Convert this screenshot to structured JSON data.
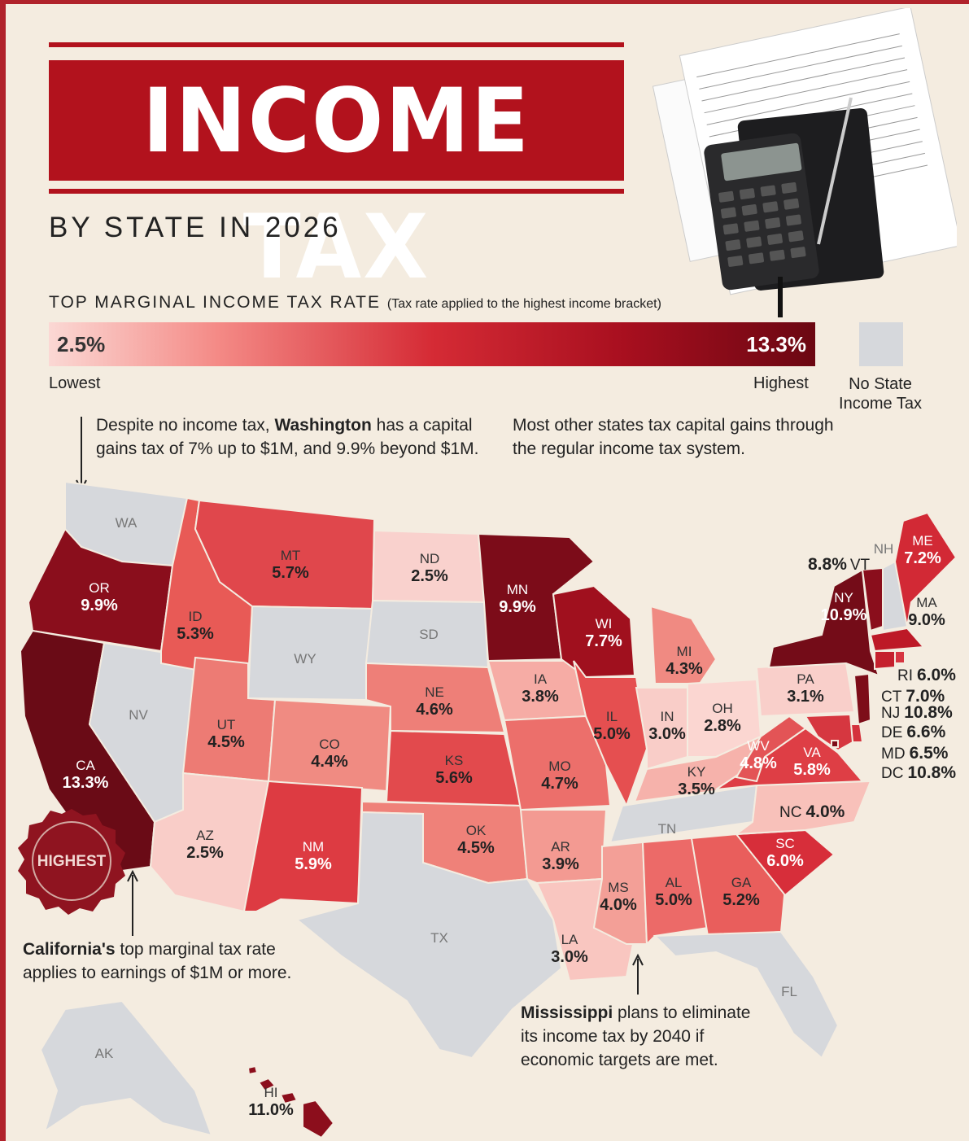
{
  "title": "INCOME TAX",
  "subtitle": "BY STATE IN 2026",
  "legend": {
    "title": "TOP MARGINAL INCOME TAX RATE",
    "title_note": "(Tax rate applied to the highest income bracket)",
    "min_value": "2.5%",
    "max_value": "13.3%",
    "min_label": "Lowest",
    "max_label": "Highest",
    "no_tax_label": "No State Income Tax",
    "colors": {
      "low": "#fbd8d4",
      "high": "#6b0712",
      "none": "#d6d8dc"
    }
  },
  "notes": {
    "washington_pre": "Despite no income tax, ",
    "washington_bold": "Washington",
    "washington_post": " has a capital gains tax of 7% up to $1M, and 9.9% beyond $1M.",
    "other_states": "Most other states tax capital gains through the regular income tax system.",
    "california_bold": "California's",
    "california_post": " top marginal tax rate applies to earnings of $1M or more.",
    "mississippi_bold": "Mississippi",
    "mississippi_post": " plans to eliminate its income tax by 2040 if economic targets are met."
  },
  "seal_text": "HIGHEST",
  "states": [
    {
      "abbr": "WA",
      "rate": ""
    },
    {
      "abbr": "OR",
      "rate": "9.9%"
    },
    {
      "abbr": "CA",
      "rate": "13.3%"
    },
    {
      "abbr": "NV",
      "rate": ""
    },
    {
      "abbr": "ID",
      "rate": "5.3%"
    },
    {
      "abbr": "MT",
      "rate": "5.7%"
    },
    {
      "abbr": "WY",
      "rate": ""
    },
    {
      "abbr": "UT",
      "rate": "4.5%"
    },
    {
      "abbr": "AZ",
      "rate": "2.5%"
    },
    {
      "abbr": "CO",
      "rate": "4.4%"
    },
    {
      "abbr": "NM",
      "rate": "5.9%"
    },
    {
      "abbr": "ND",
      "rate": "2.5%"
    },
    {
      "abbr": "SD",
      "rate": ""
    },
    {
      "abbr": "NE",
      "rate": "4.6%"
    },
    {
      "abbr": "KS",
      "rate": "5.6%"
    },
    {
      "abbr": "OK",
      "rate": "4.5%"
    },
    {
      "abbr": "TX",
      "rate": ""
    },
    {
      "abbr": "MN",
      "rate": "9.9%"
    },
    {
      "abbr": "IA",
      "rate": "3.8%"
    },
    {
      "abbr": "MO",
      "rate": "4.7%"
    },
    {
      "abbr": "AR",
      "rate": "3.9%"
    },
    {
      "abbr": "LA",
      "rate": "3.0%"
    },
    {
      "abbr": "WI",
      "rate": "7.7%"
    },
    {
      "abbr": "IL",
      "rate": "5.0%"
    },
    {
      "abbr": "MI",
      "rate": "4.3%"
    },
    {
      "abbr": "IN",
      "rate": "3.0%"
    },
    {
      "abbr": "OH",
      "rate": "2.8%"
    },
    {
      "abbr": "KY",
      "rate": "3.5%"
    },
    {
      "abbr": "TN",
      "rate": ""
    },
    {
      "abbr": "MS",
      "rate": "4.0%"
    },
    {
      "abbr": "AL",
      "rate": "5.0%"
    },
    {
      "abbr": "GA",
      "rate": "5.2%"
    },
    {
      "abbr": "FL",
      "rate": ""
    },
    {
      "abbr": "SC",
      "rate": "6.0%"
    },
    {
      "abbr": "NC",
      "rate": "4.0%"
    },
    {
      "abbr": "VA",
      "rate": "5.8%"
    },
    {
      "abbr": "WV",
      "rate": "4.8%"
    },
    {
      "abbr": "PA",
      "rate": "3.1%"
    },
    {
      "abbr": "NY",
      "rate": "10.9%"
    },
    {
      "abbr": "VT",
      "rate": "8.8%"
    },
    {
      "abbr": "NH",
      "rate": ""
    },
    {
      "abbr": "ME",
      "rate": "7.2%"
    },
    {
      "abbr": "MA",
      "rate": "9.0%"
    },
    {
      "abbr": "RI",
      "rate": "6.0%"
    },
    {
      "abbr": "CT",
      "rate": "7.0%"
    },
    {
      "abbr": "NJ",
      "rate": "10.8%"
    },
    {
      "abbr": "DE",
      "rate": "6.6%"
    },
    {
      "abbr": "MD",
      "rate": "6.5%"
    },
    {
      "abbr": "DC",
      "rate": "10.8%"
    },
    {
      "abbr": "AK",
      "rate": ""
    },
    {
      "abbr": "HI",
      "rate": "11.0%"
    }
  ]
}
